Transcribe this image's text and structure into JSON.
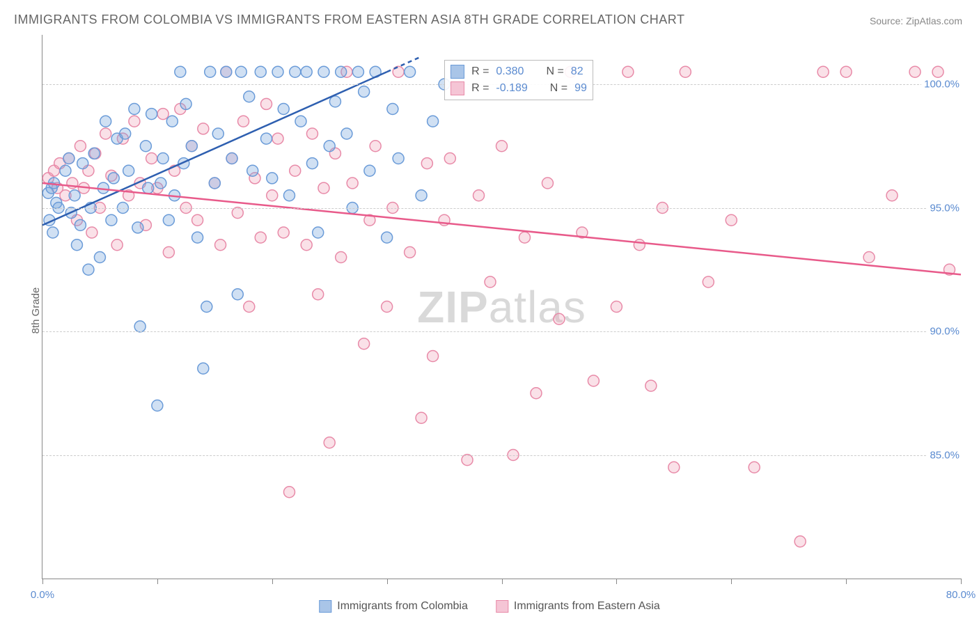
{
  "title": "IMMIGRANTS FROM COLOMBIA VS IMMIGRANTS FROM EASTERN ASIA 8TH GRADE CORRELATION CHART",
  "source": "Source: ZipAtlas.com",
  "y_axis_label": "8th Grade",
  "watermark_left": "ZIP",
  "watermark_right": "atlas",
  "chart": {
    "type": "scatter-with-regression",
    "xlim": [
      0,
      80
    ],
    "ylim": [
      80,
      102
    ],
    "x_ticks": [
      0,
      10,
      20,
      30,
      40,
      50,
      60,
      70,
      80
    ],
    "x_tick_labels_shown": {
      "0": "0.0%",
      "80": "80.0%"
    },
    "y_ticks": [
      85,
      90,
      95,
      100
    ],
    "y_tick_labels": {
      "85": "85.0%",
      "90": "90.0%",
      "95": "95.0%",
      "100": "100.0%"
    },
    "grid_color": "#cccccc",
    "axis_color": "#888888",
    "background_color": "#ffffff",
    "marker_radius": 8,
    "marker_stroke_width": 1.5,
    "line_width": 2.5,
    "series": [
      {
        "name": "Immigrants from Colombia",
        "color_fill": "rgba(120,165,220,0.35)",
        "color_stroke": "#6a9bd8",
        "line_color": "#2e5fb0",
        "swatch_fill": "#a9c5e8",
        "swatch_border": "#6a9bd8",
        "R": "0.380",
        "N": "82",
        "regression": {
          "x1": 0,
          "y1": 94.3,
          "x2": 30,
          "y2": 100.5,
          "dash_tail": true
        },
        "points": [
          [
            0.5,
            95.6
          ],
          [
            0.8,
            95.8
          ],
          [
            1.0,
            96.0
          ],
          [
            1.2,
            95.2
          ],
          [
            1.4,
            95.0
          ],
          [
            0.6,
            94.5
          ],
          [
            0.9,
            94.0
          ],
          [
            2.0,
            96.5
          ],
          [
            2.3,
            97.0
          ],
          [
            2.5,
            94.8
          ],
          [
            2.8,
            95.5
          ],
          [
            3.0,
            93.5
          ],
          [
            3.3,
            94.3
          ],
          [
            3.5,
            96.8
          ],
          [
            4.0,
            92.5
          ],
          [
            4.2,
            95.0
          ],
          [
            4.5,
            97.2
          ],
          [
            5.0,
            93.0
          ],
          [
            5.3,
            95.8
          ],
          [
            5.5,
            98.5
          ],
          [
            6.0,
            94.5
          ],
          [
            6.2,
            96.2
          ],
          [
            6.5,
            97.8
          ],
          [
            7.0,
            95.0
          ],
          [
            7.2,
            98.0
          ],
          [
            7.5,
            96.5
          ],
          [
            8.0,
            99.0
          ],
          [
            8.3,
            94.2
          ],
          [
            8.5,
            90.2
          ],
          [
            9.0,
            97.5
          ],
          [
            9.2,
            95.8
          ],
          [
            9.5,
            98.8
          ],
          [
            10.0,
            87.0
          ],
          [
            10.3,
            96.0
          ],
          [
            10.5,
            97.0
          ],
          [
            11.0,
            94.5
          ],
          [
            11.3,
            98.5
          ],
          [
            11.5,
            95.5
          ],
          [
            12.0,
            100.5
          ],
          [
            12.3,
            96.8
          ],
          [
            12.5,
            99.2
          ],
          [
            13.0,
            97.5
          ],
          [
            13.5,
            93.8
          ],
          [
            14.0,
            88.5
          ],
          [
            14.3,
            91.0
          ],
          [
            14.6,
            100.5
          ],
          [
            15.0,
            96.0
          ],
          [
            15.3,
            98.0
          ],
          [
            16.0,
            100.5
          ],
          [
            16.5,
            97.0
          ],
          [
            17.0,
            91.5
          ],
          [
            17.3,
            100.5
          ],
          [
            18.0,
            99.5
          ],
          [
            18.3,
            96.5
          ],
          [
            19.0,
            100.5
          ],
          [
            19.5,
            97.8
          ],
          [
            20.0,
            96.2
          ],
          [
            20.5,
            100.5
          ],
          [
            21.0,
            99.0
          ],
          [
            21.5,
            95.5
          ],
          [
            22.0,
            100.5
          ],
          [
            22.5,
            98.5
          ],
          [
            23.0,
            100.5
          ],
          [
            23.5,
            96.8
          ],
          [
            24.0,
            94.0
          ],
          [
            24.5,
            100.5
          ],
          [
            25.0,
            97.5
          ],
          [
            25.5,
            99.3
          ],
          [
            26.0,
            100.5
          ],
          [
            26.5,
            98.0
          ],
          [
            27.0,
            95.0
          ],
          [
            27.5,
            100.5
          ],
          [
            28.0,
            99.7
          ],
          [
            28.5,
            96.5
          ],
          [
            29.0,
            100.5
          ],
          [
            30.0,
            93.8
          ],
          [
            30.5,
            99.0
          ],
          [
            31.0,
            97.0
          ],
          [
            32.0,
            100.5
          ],
          [
            33.0,
            95.5
          ],
          [
            34.0,
            98.5
          ],
          [
            35.0,
            100.0
          ]
        ]
      },
      {
        "name": "Immigrants from Eastern Asia",
        "color_fill": "rgba(240,155,180,0.30)",
        "color_stroke": "#e88aa8",
        "line_color": "#e85a8a",
        "swatch_fill": "#f5c5d5",
        "swatch_border": "#e88aa8",
        "R": "-0.189",
        "N": "99",
        "regression": {
          "x1": 0,
          "y1": 96.0,
          "x2": 80,
          "y2": 92.3,
          "dash_tail": false
        },
        "points": [
          [
            0.5,
            96.2
          ],
          [
            1.0,
            96.5
          ],
          [
            1.3,
            95.8
          ],
          [
            1.5,
            96.8
          ],
          [
            2.0,
            95.5
          ],
          [
            2.3,
            97.0
          ],
          [
            2.6,
            96.0
          ],
          [
            3.0,
            94.5
          ],
          [
            3.3,
            97.5
          ],
          [
            3.6,
            95.8
          ],
          [
            4.0,
            96.5
          ],
          [
            4.3,
            94.0
          ],
          [
            4.6,
            97.2
          ],
          [
            5.0,
            95.0
          ],
          [
            5.5,
            98.0
          ],
          [
            6.0,
            96.3
          ],
          [
            6.5,
            93.5
          ],
          [
            7.0,
            97.8
          ],
          [
            7.5,
            95.5
          ],
          [
            8.0,
            98.5
          ],
          [
            8.5,
            96.0
          ],
          [
            9.0,
            94.3
          ],
          [
            9.5,
            97.0
          ],
          [
            10.0,
            95.8
          ],
          [
            10.5,
            98.8
          ],
          [
            11.0,
            93.2
          ],
          [
            11.5,
            96.5
          ],
          [
            12.0,
            99.0
          ],
          [
            12.5,
            95.0
          ],
          [
            13.0,
            97.5
          ],
          [
            13.5,
            94.5
          ],
          [
            14.0,
            98.2
          ],
          [
            15.0,
            96.0
          ],
          [
            15.5,
            93.5
          ],
          [
            16.0,
            100.5
          ],
          [
            16.5,
            97.0
          ],
          [
            17.0,
            94.8
          ],
          [
            17.5,
            98.5
          ],
          [
            18.0,
            91.0
          ],
          [
            18.5,
            96.2
          ],
          [
            19.0,
            93.8
          ],
          [
            19.5,
            99.2
          ],
          [
            20.0,
            95.5
          ],
          [
            20.5,
            97.8
          ],
          [
            21.0,
            94.0
          ],
          [
            21.5,
            83.5
          ],
          [
            22.0,
            96.5
          ],
          [
            23.0,
            93.5
          ],
          [
            23.5,
            98.0
          ],
          [
            24.0,
            91.5
          ],
          [
            24.5,
            95.8
          ],
          [
            25.0,
            85.5
          ],
          [
            25.5,
            97.2
          ],
          [
            26.0,
            93.0
          ],
          [
            26.5,
            100.5
          ],
          [
            27.0,
            96.0
          ],
          [
            28.0,
            89.5
          ],
          [
            28.5,
            94.5
          ],
          [
            29.0,
            97.5
          ],
          [
            30.0,
            91.0
          ],
          [
            30.5,
            95.0
          ],
          [
            31.0,
            100.5
          ],
          [
            32.0,
            93.2
          ],
          [
            33.0,
            86.5
          ],
          [
            33.5,
            96.8
          ],
          [
            34.0,
            89.0
          ],
          [
            35.0,
            94.5
          ],
          [
            35.5,
            97.0
          ],
          [
            36.0,
            100.5
          ],
          [
            37.0,
            84.8
          ],
          [
            38.0,
            95.5
          ],
          [
            39.0,
            92.0
          ],
          [
            40.0,
            97.5
          ],
          [
            41.0,
            85.0
          ],
          [
            42.0,
            93.8
          ],
          [
            43.0,
            87.5
          ],
          [
            44.0,
            96.0
          ],
          [
            45.0,
            90.5
          ],
          [
            46.0,
            100.5
          ],
          [
            47.0,
            94.0
          ],
          [
            48.0,
            88.0
          ],
          [
            50.0,
            91.0
          ],
          [
            51.0,
            100.5
          ],
          [
            52.0,
            93.5
          ],
          [
            53.0,
            87.8
          ],
          [
            54.0,
            95.0
          ],
          [
            55.0,
            84.5
          ],
          [
            56.0,
            100.5
          ],
          [
            58.0,
            92.0
          ],
          [
            60.0,
            94.5
          ],
          [
            62.0,
            84.5
          ],
          [
            66.0,
            81.5
          ],
          [
            68.0,
            100.5
          ],
          [
            70.0,
            100.5
          ],
          [
            72.0,
            93.0
          ],
          [
            74.0,
            95.5
          ],
          [
            76.0,
            100.5
          ],
          [
            78.0,
            100.5
          ],
          [
            79.0,
            92.5
          ]
        ]
      }
    ]
  },
  "stats_box": {
    "rows": [
      {
        "series_idx": 0,
        "r_label": "R =",
        "n_label": "N ="
      },
      {
        "series_idx": 1,
        "r_label": "R =",
        "n_label": "N ="
      }
    ]
  }
}
